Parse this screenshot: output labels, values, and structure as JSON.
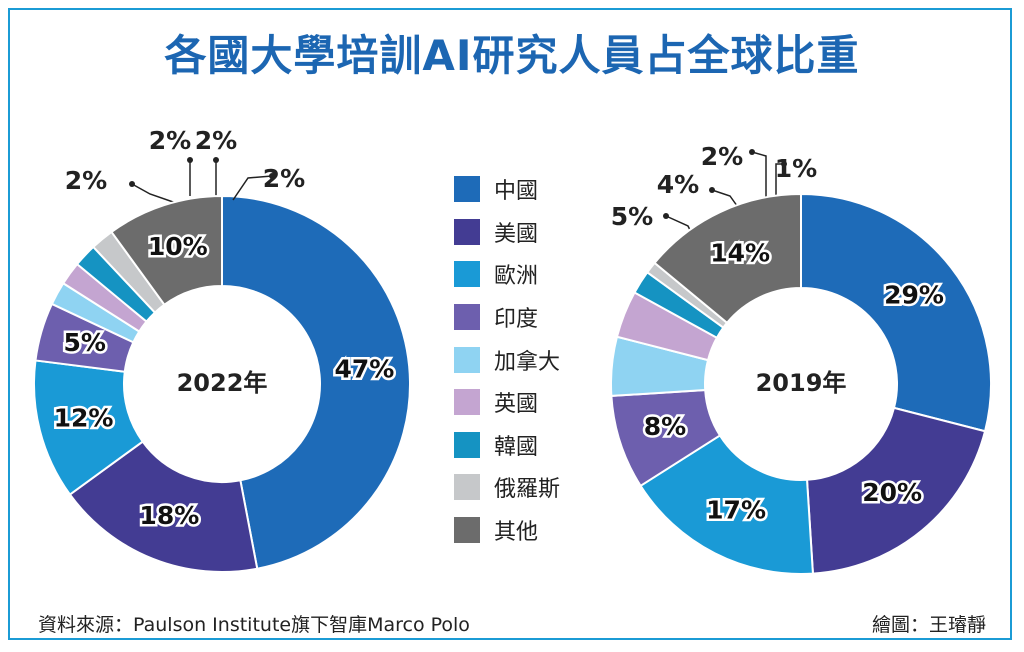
{
  "title": "各國大學培訓AI研究人員占全球比重",
  "colors": {
    "中國": "#1e6bb8",
    "美國": "#433c93",
    "歐洲": "#1a9ad6",
    "印度": "#6d5fae",
    "加拿大": "#8fd3f2",
    "英國": "#c4a5d1",
    "韓國": "#1593c2",
    "俄羅斯": "#c6c8ca",
    "其他": "#6c6c6c"
  },
  "legend": [
    "中國",
    "美國",
    "歐洲",
    "印度",
    "加拿大",
    "英國",
    "韓國",
    "俄羅斯",
    "其他"
  ],
  "chart_data": [
    {
      "type": "pie",
      "center_label": "2022年",
      "categories": [
        "中國",
        "美國",
        "歐洲",
        "印度",
        "加拿大",
        "英國",
        "韓國",
        "俄羅斯",
        "其他"
      ],
      "values": [
        47,
        18,
        12,
        5,
        2,
        2,
        2,
        2,
        10
      ],
      "labels": [
        "47%",
        "18%",
        "12%",
        "5%",
        "2%",
        "2%",
        "2%",
        "2%",
        "10%"
      ]
    },
    {
      "type": "pie",
      "center_label": "2019年",
      "categories": [
        "中國",
        "美國",
        "歐洲",
        "印度",
        "加拿大",
        "英國",
        "韓國",
        "俄羅斯",
        "其他"
      ],
      "values": [
        29,
        20,
        17,
        8,
        5,
        4,
        2,
        1,
        14
      ],
      "labels": [
        "29%",
        "20%",
        "17%",
        "8%",
        "5%",
        "4%",
        "2%",
        "1%",
        "14%"
      ]
    }
  ],
  "footer": {
    "source": "資料來源：Paulson Institute旗下智庫Marco Polo",
    "credit": "繪圖：王璿靜"
  }
}
